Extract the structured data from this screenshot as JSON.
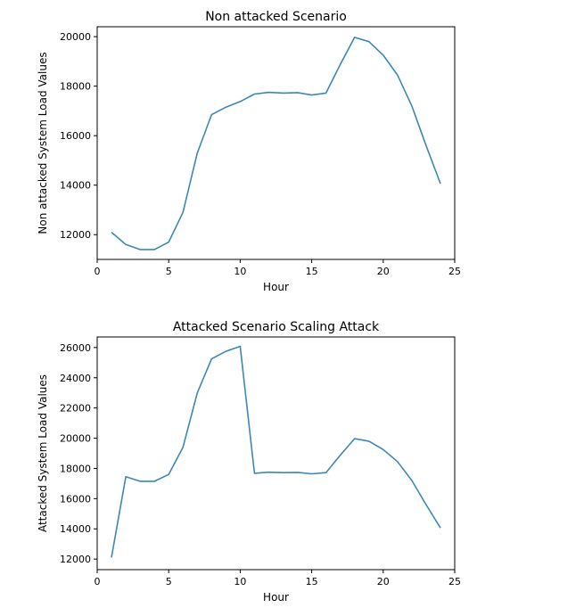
{
  "chart_data": [
    {
      "type": "line",
      "title": "Non attacked Scenario",
      "xlabel": "Hour",
      "ylabel": "Non attacked System Load Values",
      "xlim": [
        0,
        25
      ],
      "ylim": [
        11000,
        20400
      ],
      "xticks": [
        0,
        5,
        10,
        15,
        20,
        25
      ],
      "yticks": [
        12000,
        14000,
        16000,
        18000,
        20000
      ],
      "grid": false,
      "x": [
        1,
        2,
        3,
        4,
        5,
        6,
        7,
        8,
        9,
        10,
        11,
        12,
        13,
        14,
        15,
        16,
        17,
        18,
        19,
        20,
        21,
        22,
        23,
        24
      ],
      "series": [
        {
          "color": "#3b88b8",
          "values": [
            12100,
            11600,
            11400,
            11400,
            11700,
            12900,
            15300,
            16850,
            17150,
            17380,
            17680,
            17750,
            17720,
            17740,
            17640,
            17720,
            18880,
            19970,
            19800,
            19250,
            18450,
            17200,
            15600,
            14060
          ]
        }
      ]
    },
    {
      "type": "line",
      "title": "Attacked Scenario Scaling Attack",
      "xlabel": "Hour",
      "ylabel": "Attacked System Load Values",
      "xlim": [
        0,
        25
      ],
      "ylim": [
        11300,
        26700
      ],
      "xticks": [
        0,
        5,
        10,
        15,
        20,
        25
      ],
      "yticks": [
        12000,
        14000,
        16000,
        18000,
        20000,
        22000,
        24000,
        26000
      ],
      "grid": false,
      "x": [
        1,
        2,
        3,
        4,
        5,
        6,
        7,
        8,
        9,
        10,
        11,
        12,
        13,
        14,
        15,
        16,
        17,
        18,
        19,
        20,
        21,
        22,
        23,
        24
      ],
      "series": [
        {
          "color": "#3b88b8",
          "values": [
            12100,
            17450,
            17150,
            17150,
            17600,
            19400,
            23000,
            25250,
            25750,
            26080,
            17680,
            17750,
            17720,
            17740,
            17640,
            17720,
            18880,
            19970,
            19800,
            19250,
            18450,
            17200,
            15600,
            14060
          ]
        }
      ]
    }
  ]
}
